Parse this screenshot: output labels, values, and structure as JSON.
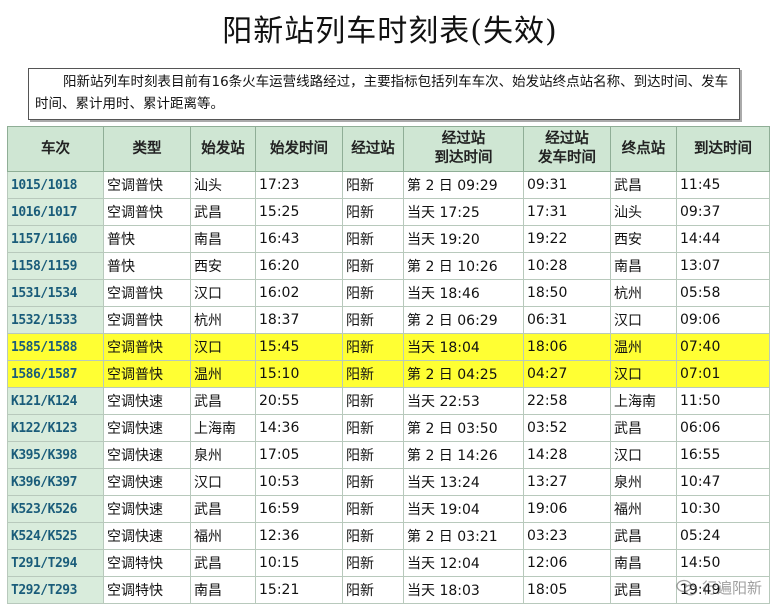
{
  "title": "阳新站列车时刻表(失效)",
  "description": "阳新站列车时刻表目前有16条火车运营线路经过，主要指标包括列车车次、始发站终点站名称、到达时间、发车时间、累计用时、累计距离等。",
  "columns": [
    "车次",
    "类型",
    "始发站",
    "始发时间",
    "经过站",
    "经过站\n到达时间",
    "经过站\n发车时间",
    "终点站",
    "到达时间"
  ],
  "rows": [
    {
      "train": "1015/1018",
      "type": "空调普快",
      "origin": "汕头",
      "depart": "17:23",
      "via": "阳新",
      "via_arrive": "第 2 日 09:29",
      "via_depart": "09:31",
      "dest": "武昌",
      "arrive": "11:45",
      "highlight": false
    },
    {
      "train": "1016/1017",
      "type": "空调普快",
      "origin": "武昌",
      "depart": "15:25",
      "via": "阳新",
      "via_arrive": "当天 17:25",
      "via_depart": "17:31",
      "dest": "汕头",
      "arrive": "09:37",
      "highlight": false
    },
    {
      "train": "1157/1160",
      "type": "普快",
      "origin": "南昌",
      "depart": "16:43",
      "via": "阳新",
      "via_arrive": "当天 19:20",
      "via_depart": "19:22",
      "dest": "西安",
      "arrive": "14:44",
      "highlight": false
    },
    {
      "train": "1158/1159",
      "type": "普快",
      "origin": "西安",
      "depart": "16:20",
      "via": "阳新",
      "via_arrive": "第 2 日 10:26",
      "via_depart": "10:28",
      "dest": "南昌",
      "arrive": "13:07",
      "highlight": false
    },
    {
      "train": "1531/1534",
      "type": "空调普快",
      "origin": "汉口",
      "depart": "16:02",
      "via": "阳新",
      "via_arrive": "当天 18:46",
      "via_depart": "18:50",
      "dest": "杭州",
      "arrive": "05:58",
      "highlight": false
    },
    {
      "train": "1532/1533",
      "type": "空调普快",
      "origin": "杭州",
      "depart": "18:37",
      "via": "阳新",
      "via_arrive": "第 2 日 06:29",
      "via_depart": "06:31",
      "dest": "汉口",
      "arrive": "09:06",
      "highlight": false
    },
    {
      "train": "1585/1588",
      "type": "空调普快",
      "origin": "汉口",
      "depart": "15:45",
      "via": "阳新",
      "via_arrive": "当天 18:04",
      "via_depart": "18:06",
      "dest": "温州",
      "arrive": "07:40",
      "highlight": true
    },
    {
      "train": "1586/1587",
      "type": "空调普快",
      "origin": "温州",
      "depart": "15:10",
      "via": "阳新",
      "via_arrive": "第 2 日 04:25",
      "via_depart": "04:27",
      "dest": "汉口",
      "arrive": "07:01",
      "highlight": true
    },
    {
      "train": "K121/K124",
      "type": "空调快速",
      "origin": "武昌",
      "depart": "20:55",
      "via": "阳新",
      "via_arrive": "当天 22:53",
      "via_depart": "22:58",
      "dest": "上海南",
      "arrive": "11:50",
      "highlight": false
    },
    {
      "train": "K122/K123",
      "type": "空调快速",
      "origin": "上海南",
      "depart": "14:36",
      "via": "阳新",
      "via_arrive": "第 2 日 03:50",
      "via_depart": "03:52",
      "dest": "武昌",
      "arrive": "06:06",
      "highlight": false
    },
    {
      "train": "K395/K398",
      "type": "空调快速",
      "origin": "泉州",
      "depart": "17:05",
      "via": "阳新",
      "via_arrive": "第 2 日 14:26",
      "via_depart": "14:28",
      "dest": "汉口",
      "arrive": "16:55",
      "highlight": false
    },
    {
      "train": "K396/K397",
      "type": "空调快速",
      "origin": "汉口",
      "depart": "10:53",
      "via": "阳新",
      "via_arrive": "当天 13:24",
      "via_depart": "13:27",
      "dest": "泉州",
      "arrive": "10:47",
      "highlight": false
    },
    {
      "train": "K523/K526",
      "type": "空调快速",
      "origin": "武昌",
      "depart": "16:59",
      "via": "阳新",
      "via_arrive": "当天 19:04",
      "via_depart": "19:06",
      "dest": "福州",
      "arrive": "10:30",
      "highlight": false
    },
    {
      "train": "K524/K525",
      "type": "空调快速",
      "origin": "福州",
      "depart": "12:36",
      "via": "阳新",
      "via_arrive": "第 2 日 03:21",
      "via_depart": "03:23",
      "dest": "武昌",
      "arrive": "05:24",
      "highlight": false
    },
    {
      "train": "T291/T294",
      "type": "空调特快",
      "origin": "武昌",
      "depart": "10:15",
      "via": "阳新",
      "via_arrive": "当天 12:04",
      "via_depart": "12:06",
      "dest": "南昌",
      "arrive": "14:50",
      "highlight": false
    },
    {
      "train": "T292/T293",
      "type": "空调特快",
      "origin": "南昌",
      "depart": "15:21",
      "via": "阳新",
      "via_arrive": "当天 18:03",
      "via_depart": "18:05",
      "dest": "武昌",
      "arrive": "19:49",
      "highlight": false
    }
  ],
  "watermark": "行遍阳新"
}
